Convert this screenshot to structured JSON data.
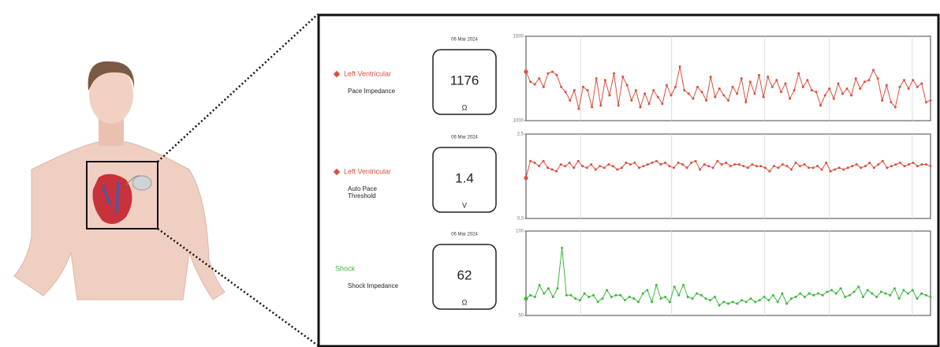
{
  "chart_data": [
    {
      "type": "line",
      "date": "06 Mar 2024",
      "current_value": 1176,
      "unit": "Ω",
      "subtitle": [
        "Pace Impedance"
      ],
      "legend_marker": true,
      "ylim": [
        1000,
        1500
      ],
      "yticks": [
        1000,
        1500
      ],
      "grid": true,
      "series": [
        {
          "name": "Left Ventricular",
          "color": "#d9503f",
          "values": [
            1290,
            1230,
            1215,
            1250,
            1200,
            1280,
            1290,
            1270,
            1200,
            1170,
            1120,
            1180,
            1070,
            1200,
            1180,
            1080,
            1250,
            1090,
            1240,
            1150,
            1280,
            1090,
            1260,
            1210,
            1120,
            1180,
            1080,
            1160,
            1100,
            1180,
            1140,
            1100,
            1210,
            1150,
            1200,
            1320,
            1180,
            1160,
            1130,
            1200,
            1170,
            1120,
            1260,
            1140,
            1190,
            1150,
            1120,
            1200,
            1160,
            1250,
            1110,
            1230,
            1160,
            1270,
            1140,
            1260,
            1200,
            1240,
            1170,
            1220,
            1130,
            1180,
            1280,
            1200,
            1240,
            1180,
            1170,
            1090,
            1150,
            1190,
            1130,
            1220,
            1160,
            1190,
            1150,
            1250,
            1190,
            1230,
            1240,
            1300,
            1250,
            1120,
            1210,
            1110,
            1080,
            1200,
            1240,
            1190,
            1240,
            1200,
            1220,
            1110,
            1120
          ]
        }
      ]
    },
    {
      "type": "line",
      "date": "06 Mar 2024",
      "current_value": 1.4,
      "unit": "V",
      "subtitle": [
        "Auto Pace",
        "Threshold"
      ],
      "legend_marker": true,
      "ylim": [
        0,
        2.5
      ],
      "yticks": [
        {
          "value": 0,
          "label": "0.0"
        },
        2.5
      ],
      "grid": true,
      "series": [
        {
          "name": "Left Ventricular",
          "color": "#d9503f",
          "values": [
            1.2,
            1.7,
            1.65,
            1.55,
            1.7,
            1.5,
            1.45,
            1.4,
            1.6,
            1.55,
            1.65,
            1.5,
            1.7,
            1.55,
            1.5,
            1.6,
            1.45,
            1.55,
            1.5,
            1.6,
            1.55,
            1.45,
            1.5,
            1.65,
            1.6,
            1.65,
            1.5,
            1.55,
            1.6,
            1.65,
            1.7,
            1.6,
            1.65,
            1.55,
            1.5,
            1.65,
            1.6,
            1.5,
            1.65,
            1.7,
            1.45,
            1.6,
            1.55,
            1.5,
            1.7,
            1.6,
            1.65,
            1.55,
            1.6,
            1.6,
            1.55,
            1.5,
            1.6,
            1.55,
            1.55,
            1.5,
            1.4,
            1.55,
            1.5,
            1.6,
            1.55,
            1.45,
            1.65,
            1.55,
            1.6,
            1.5,
            1.5,
            1.55,
            1.45,
            1.65,
            1.4,
            1.45,
            1.5,
            1.45,
            1.5,
            1.55,
            1.6,
            1.5,
            1.55,
            1.65,
            1.5,
            1.6,
            1.7,
            1.5,
            1.55,
            1.6,
            1.65,
            1.55,
            1.6,
            1.65,
            1.55,
            1.6,
            1.6,
            1.55
          ]
        }
      ]
    },
    {
      "type": "line",
      "date": "06 Mar 2024",
      "current_value": 62,
      "unit": "Ω",
      "subtitle": [
        "Shock Impedance"
      ],
      "legend_marker": false,
      "ylim": [
        50,
        100
      ],
      "yticks": [
        50,
        100
      ],
      "grid": true,
      "series": [
        {
          "name": "Shock",
          "color": "#3db83d",
          "values": [
            60,
            62,
            61,
            68,
            63,
            66,
            61,
            66,
            90,
            62,
            62,
            60,
            59,
            63,
            61,
            62,
            58,
            60,
            65,
            61,
            62,
            62,
            59,
            61,
            60,
            58,
            63,
            65,
            58,
            68,
            60,
            61,
            58,
            67,
            62,
            68,
            61,
            60,
            63,
            62,
            60,
            59,
            61,
            56,
            58,
            57,
            58,
            57,
            59,
            58,
            60,
            58,
            59,
            61,
            59,
            62,
            58,
            63,
            57,
            60,
            61,
            63,
            61,
            63,
            62,
            63,
            62,
            64,
            65,
            63,
            66,
            61,
            62,
            64,
            67,
            61,
            65,
            63,
            61,
            64,
            63,
            62,
            66,
            60,
            65,
            63,
            65,
            60,
            63,
            62,
            61
          ]
        }
      ]
    }
  ]
}
